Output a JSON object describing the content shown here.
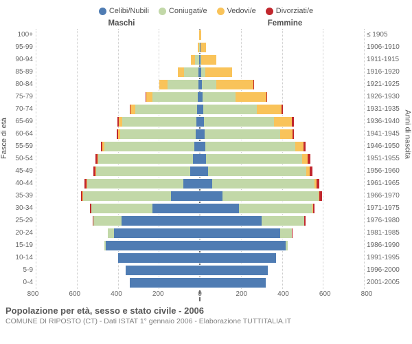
{
  "type": "population-pyramid",
  "colors": {
    "celibi": "#4f7cb3",
    "coniugati": "#c2d8a8",
    "vedovi": "#f9c35a",
    "divorziati": "#c1272d",
    "grid": "#cccccc",
    "centerline": "#666666",
    "bg": "#ffffff",
    "text": "#505050"
  },
  "legend": [
    {
      "key": "celibi",
      "label": "Celibi/Nubili"
    },
    {
      "key": "coniugati",
      "label": "Coniugati/e"
    },
    {
      "key": "vedovi",
      "label": "Vedovi/e"
    },
    {
      "key": "divorziati",
      "label": "Divorziati/e"
    }
  ],
  "headers": {
    "male": "Maschi",
    "female": "Femmine"
  },
  "y_left_title": "Fasce di età",
  "y_right_title": "Anni di nascita",
  "x_max": 800,
  "x_ticks_male": [
    800,
    600,
    400,
    200,
    0
  ],
  "x_ticks_female": [
    0,
    200,
    400,
    600,
    800
  ],
  "x_tick_labels": [
    "800",
    "600",
    "400",
    "200",
    "0",
    "0",
    "200",
    "400",
    "600",
    "800"
  ],
  "age_labels": [
    "100+",
    "95-99",
    "90-94",
    "85-89",
    "80-84",
    "75-79",
    "70-74",
    "65-69",
    "60-64",
    "55-59",
    "50-54",
    "45-49",
    "40-44",
    "35-39",
    "30-34",
    "25-29",
    "20-24",
    "15-19",
    "10-14",
    "5-9",
    "0-4"
  ],
  "year_labels": [
    "≤ 1905",
    "1906-1910",
    "1911-1915",
    "1916-1920",
    "1921-1925",
    "1926-1930",
    "1931-1935",
    "1936-1940",
    "1941-1945",
    "1946-1950",
    "1951-1955",
    "1956-1960",
    "1961-1965",
    "1966-1970",
    "1971-1975",
    "1976-1980",
    "1981-1985",
    "1986-1990",
    "1991-1995",
    "1996-2000",
    "2001-2005"
  ],
  "bars": {
    "male": [
      {
        "celibi": 0,
        "coniugati": 0,
        "vedovi": 2,
        "divorziati": 0
      },
      {
        "celibi": 0,
        "coniugati": 4,
        "vedovi": 6,
        "divorziati": 0
      },
      {
        "celibi": 2,
        "coniugati": 20,
        "vedovi": 20,
        "divorziati": 0
      },
      {
        "celibi": 6,
        "coniugati": 70,
        "vedovi": 30,
        "divorziati": 0
      },
      {
        "celibi": 8,
        "coniugati": 150,
        "vedovi": 40,
        "divorziati": 0
      },
      {
        "celibi": 10,
        "coniugati": 220,
        "vedovi": 30,
        "divorziati": 4
      },
      {
        "celibi": 14,
        "coniugati": 300,
        "vedovi": 24,
        "divorziati": 4
      },
      {
        "celibi": 18,
        "coniugati": 360,
        "vedovi": 18,
        "divorziati": 6
      },
      {
        "celibi": 20,
        "coniugati": 370,
        "vedovi": 10,
        "divorziati": 6
      },
      {
        "celibi": 26,
        "coniugati": 440,
        "vedovi": 8,
        "divorziati": 8
      },
      {
        "celibi": 34,
        "coniugati": 460,
        "vedovi": 6,
        "divorziati": 10
      },
      {
        "celibi": 46,
        "coniugati": 460,
        "vedovi": 4,
        "divorziati": 10
      },
      {
        "celibi": 80,
        "coniugati": 470,
        "vedovi": 2,
        "divorziati": 10
      },
      {
        "celibi": 140,
        "coniugati": 430,
        "vedovi": 2,
        "divorziati": 8
      },
      {
        "celibi": 230,
        "coniugati": 300,
        "vedovi": 0,
        "divorziati": 4
      },
      {
        "celibi": 380,
        "coniugati": 140,
        "vedovi": 0,
        "divorziati": 2
      },
      {
        "celibi": 420,
        "coniugati": 30,
        "vedovi": 0,
        "divorziati": 0
      },
      {
        "celibi": 460,
        "coniugati": 4,
        "vedovi": 0,
        "divorziati": 0
      },
      {
        "celibi": 400,
        "coniugati": 0,
        "vedovi": 0,
        "divorziati": 0
      },
      {
        "celibi": 360,
        "coniugati": 0,
        "vedovi": 0,
        "divorziati": 0
      },
      {
        "celibi": 340,
        "coniugati": 0,
        "vedovi": 0,
        "divorziati": 0
      }
    ],
    "female": [
      {
        "celibi": 0,
        "coniugati": 0,
        "vedovi": 8,
        "divorziati": 0
      },
      {
        "celibi": 2,
        "coniugati": 0,
        "vedovi": 28,
        "divorziati": 0
      },
      {
        "celibi": 4,
        "coniugati": 4,
        "vedovi": 72,
        "divorziati": 0
      },
      {
        "celibi": 6,
        "coniugati": 20,
        "vedovi": 130,
        "divorziati": 0
      },
      {
        "celibi": 10,
        "coniugati": 70,
        "vedovi": 180,
        "divorziati": 2
      },
      {
        "celibi": 14,
        "coniugati": 160,
        "vedovi": 150,
        "divorziati": 4
      },
      {
        "celibi": 18,
        "coniugati": 260,
        "vedovi": 120,
        "divorziati": 6
      },
      {
        "celibi": 20,
        "coniugati": 340,
        "vedovi": 90,
        "divorziati": 8
      },
      {
        "celibi": 22,
        "coniugati": 370,
        "vedovi": 60,
        "divorziati": 8
      },
      {
        "celibi": 26,
        "coniugati": 440,
        "vedovi": 40,
        "divorziati": 10
      },
      {
        "celibi": 30,
        "coniugati": 470,
        "vedovi": 26,
        "divorziati": 12
      },
      {
        "celibi": 40,
        "coniugati": 480,
        "vedovi": 16,
        "divorziati": 14
      },
      {
        "celibi": 60,
        "coniugati": 500,
        "vedovi": 8,
        "divorziati": 14
      },
      {
        "celibi": 110,
        "coniugati": 470,
        "vedovi": 4,
        "divorziati": 12
      },
      {
        "celibi": 190,
        "coniugati": 360,
        "vedovi": 2,
        "divorziati": 8
      },
      {
        "celibi": 300,
        "coniugati": 210,
        "vedovi": 0,
        "divorziati": 4
      },
      {
        "celibi": 390,
        "coniugati": 60,
        "vedovi": 0,
        "divorziati": 2
      },
      {
        "celibi": 420,
        "coniugati": 10,
        "vedovi": 0,
        "divorziati": 0
      },
      {
        "celibi": 370,
        "coniugati": 0,
        "vedovi": 0,
        "divorziati": 0
      },
      {
        "celibi": 330,
        "coniugati": 0,
        "vedovi": 0,
        "divorziati": 0
      },
      {
        "celibi": 320,
        "coniugati": 0,
        "vedovi": 0,
        "divorziati": 0
      }
    ]
  },
  "footer": {
    "title": "Popolazione per età, sesso e stato civile - 2006",
    "sub": "COMUNE DI RIPOSTO (CT) - Dati ISTAT 1° gennaio 2006 - Elaborazione TUTTITALIA.IT"
  },
  "fontsize": {
    "legend": 11,
    "header": 11.5,
    "axis": 10,
    "title": 13,
    "sub": 10.5
  }
}
